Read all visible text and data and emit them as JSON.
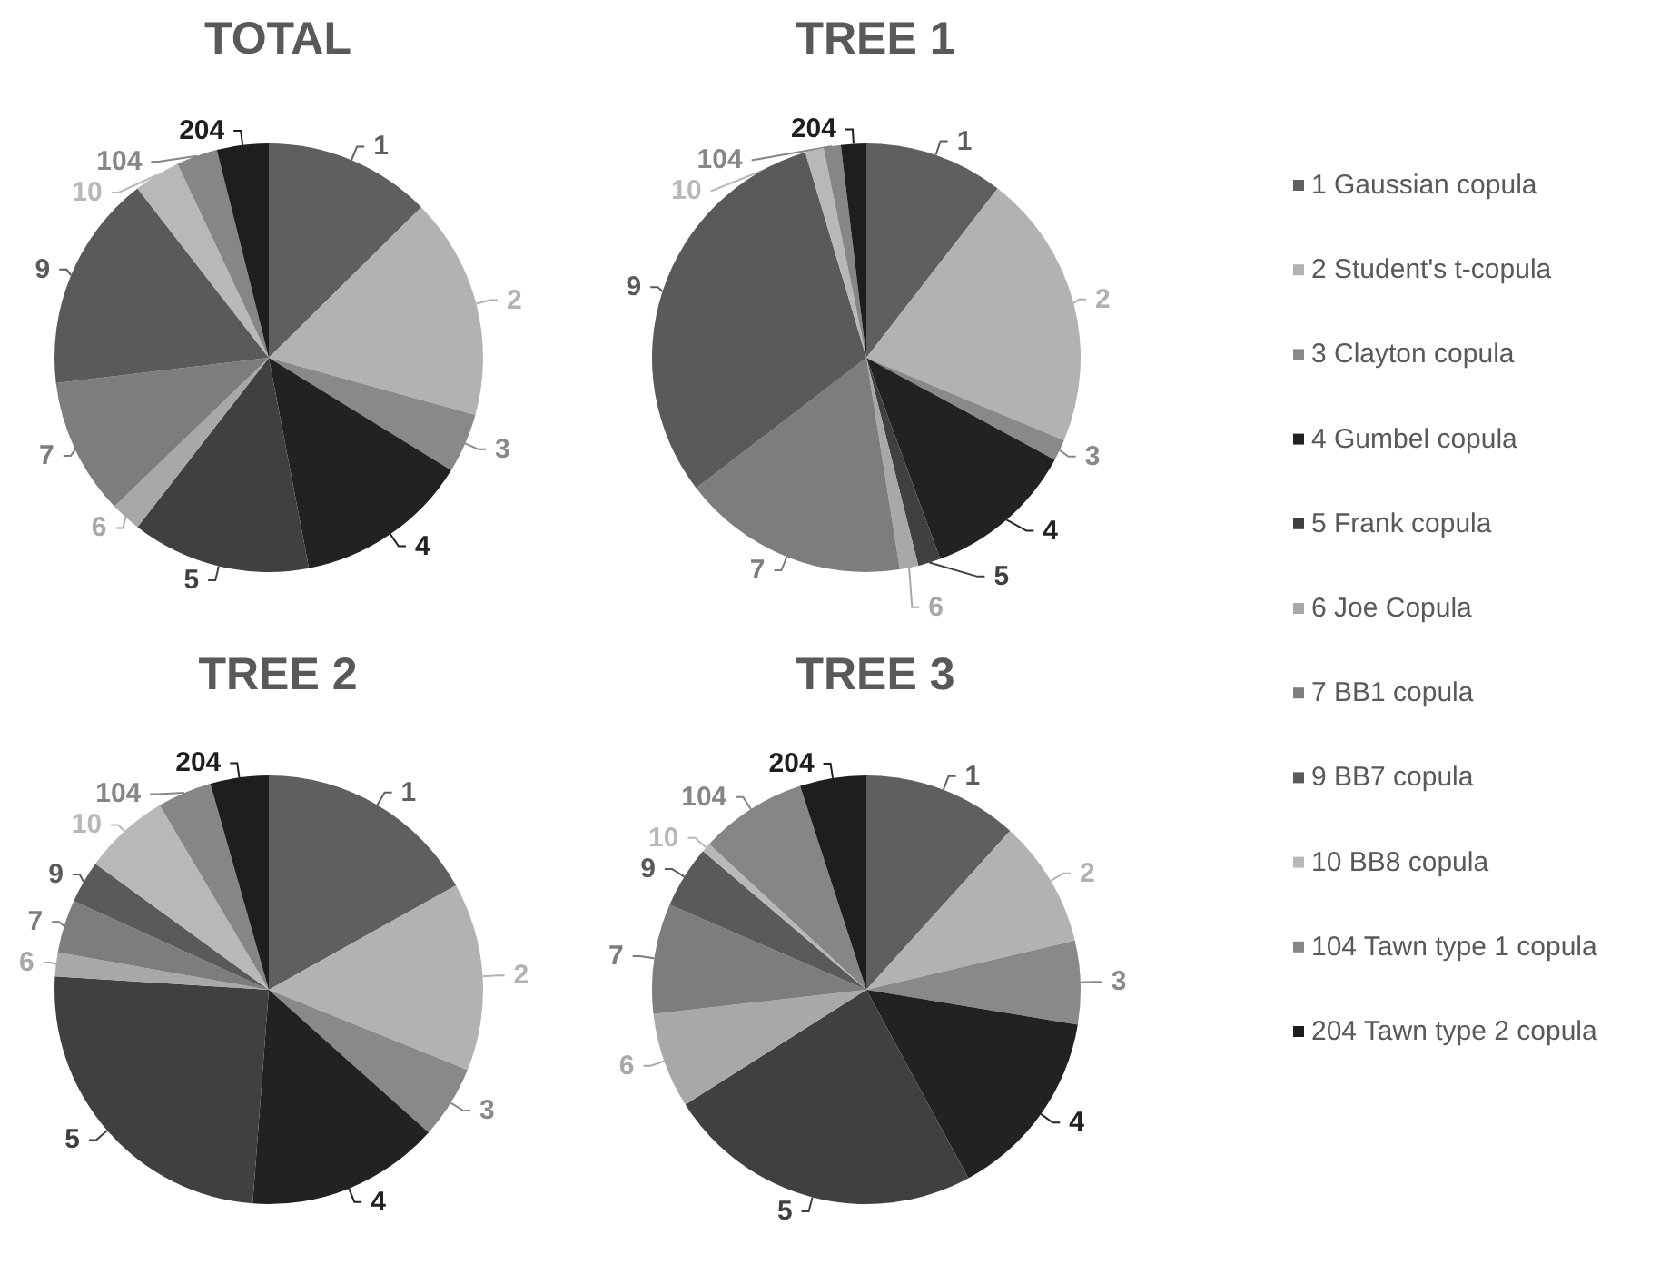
{
  "chart_data": [
    {
      "type": "pie",
      "title": "TOTAL",
      "categories": [
        "1",
        "2",
        "3",
        "4",
        "5",
        "6",
        "7",
        "9",
        "10",
        "104",
        "204"
      ],
      "values": [
        12.6,
        16.7,
        4.5,
        13.2,
        13.5,
        2.3,
        10.3,
        16.4,
        3.5,
        3.1,
        3.9
      ],
      "colors": [
        "#5f5f5f",
        "#b2b2b2",
        "#898989",
        "#222222",
        "#404040",
        "#a8a8a8",
        "#7d7d7d",
        "#5a5a5a",
        "#b8b8b8",
        "#868686",
        "#1e1e1e"
      ]
    },
    {
      "type": "pie",
      "title": "TREE 1",
      "categories": [
        "1",
        "2",
        "3",
        "4",
        "5",
        "6",
        "7",
        "9",
        "10",
        "104",
        "204"
      ],
      "values": [
        10.5,
        20.8,
        1.6,
        11.5,
        1.7,
        1.4,
        17.1,
        30.8,
        1.4,
        1.3,
        1.9
      ],
      "colors": [
        "#5f5f5f",
        "#b2b2b2",
        "#898989",
        "#222222",
        "#404040",
        "#a8a8a8",
        "#7d7d7d",
        "#5a5a5a",
        "#b8b8b8",
        "#868686",
        "#1e1e1e"
      ]
    },
    {
      "type": "pie",
      "title": "TREE 2",
      "categories": [
        "1",
        "2",
        "3",
        "4",
        "5",
        "6",
        "7",
        "9",
        "10",
        "104",
        "204"
      ],
      "values": [
        16.9,
        14.2,
        5.5,
        14.6,
        24.8,
        1.8,
        4.0,
        3.2,
        6.5,
        4.1,
        4.4
      ],
      "colors": [
        "#5f5f5f",
        "#b2b2b2",
        "#898989",
        "#222222",
        "#404040",
        "#a8a8a8",
        "#7d7d7d",
        "#5a5a5a",
        "#b8b8b8",
        "#868686",
        "#1e1e1e"
      ]
    },
    {
      "type": "pie",
      "title": "TREE 3",
      "categories": [
        "1",
        "2",
        "3",
        "4",
        "5",
        "6",
        "7",
        "9",
        "10",
        "104",
        "204"
      ],
      "values": [
        11.7,
        9.6,
        6.3,
        14.5,
        23.9,
        7.2,
        8.3,
        4.7,
        0.7,
        8.1,
        5.0
      ],
      "colors": [
        "#5f5f5f",
        "#b2b2b2",
        "#898989",
        "#222222",
        "#404040",
        "#a8a8a8",
        "#7d7d7d",
        "#5a5a5a",
        "#b8b8b8",
        "#868686",
        "#1e1e1e"
      ]
    },
    {
      "type": "other",
      "categories": [
        "1 Gaussian copula",
        "2 Student's t-copula",
        "3 Clayton copula",
        "4 Gumbel copula",
        "5 Frank copula",
        "6 Joe Copula",
        "7 BB1 copula",
        "9 BB7 copula",
        "10 BB8 copula",
        "104 Tawn type 1 copula",
        "204 Tawn type 2 copula"
      ],
      "colors": [
        "#5f5f5f",
        "#b2b2b2",
        "#898989",
        "#222222",
        "#404040",
        "#a8a8a8",
        "#7d7d7d",
        "#5a5a5a",
        "#b8b8b8",
        "#868686",
        "#1e1e1e"
      ]
    }
  ]
}
